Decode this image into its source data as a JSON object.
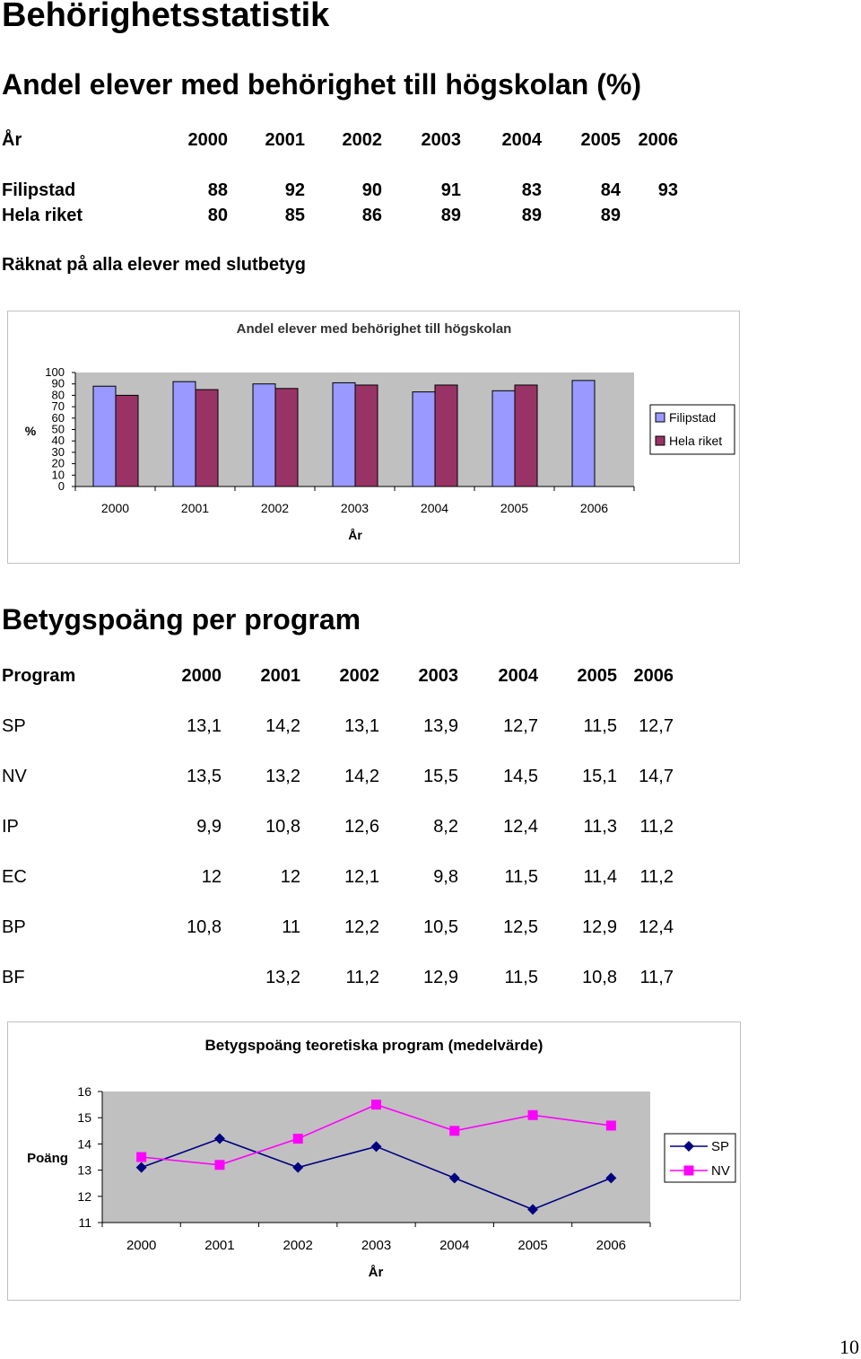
{
  "page_title": "Behörighetsstatistik",
  "section1": {
    "title": "Andel elever med behörighet till högskolan (%)",
    "header": {
      "label": "År",
      "years": [
        "2000",
        "2001",
        "2002",
        "2003",
        "2004",
        "2005",
        "2006"
      ]
    },
    "rows": [
      {
        "label": "Filipstad",
        "values": [
          "88",
          "92",
          "90",
          "91",
          "83",
          "84",
          "93"
        ]
      },
      {
        "label": "Hela riket",
        "values": [
          "80",
          "85",
          "86",
          "89",
          "89",
          "89",
          ""
        ]
      }
    ],
    "note": "Räknat på alla elever med slutbetyg"
  },
  "chart1": {
    "chart_data": {
      "type": "bar",
      "title": "Andel elever med behörighet till högskolan",
      "xlabel": "År",
      "ylabel": "%",
      "categories": [
        "2000",
        "2001",
        "2002",
        "2003",
        "2004",
        "2005",
        "2006"
      ],
      "series": [
        {
          "name": "Filipstad",
          "values": [
            88,
            92,
            90,
            91,
            83,
            84,
            93
          ]
        },
        {
          "name": "Hela riket",
          "values": [
            80,
            85,
            86,
            89,
            89,
            89,
            null
          ]
        }
      ],
      "ylim": [
        0,
        100
      ],
      "yticks": [
        "0",
        "10",
        "20",
        "30",
        "40",
        "50",
        "60",
        "70",
        "80",
        "90",
        "100"
      ],
      "legend": "right",
      "grid": false,
      "colors": {
        "Filipstad": "#9999ff",
        "Hela riket": "#993366",
        "plot_bg": "#c0c0c0"
      }
    }
  },
  "section2": {
    "title": "Betygspoäng per program",
    "header": {
      "label": "Program",
      "years": [
        "2000",
        "2001",
        "2002",
        "2003",
        "2004",
        "2005",
        "2006"
      ]
    },
    "rows": [
      {
        "label": "SP",
        "values": [
          "13,1",
          "14,2",
          "13,1",
          "13,9",
          "12,7",
          "11,5",
          "12,7"
        ]
      },
      {
        "label": "NV",
        "values": [
          "13,5",
          "13,2",
          "14,2",
          "15,5",
          "14,5",
          "15,1",
          "14,7"
        ]
      },
      {
        "label": "IP",
        "values": [
          "9,9",
          "10,8",
          "12,6",
          "8,2",
          "12,4",
          "11,3",
          "11,2"
        ]
      },
      {
        "label": "EC",
        "values": [
          "12",
          "12",
          "12,1",
          "9,8",
          "11,5",
          "11,4",
          "11,2"
        ]
      },
      {
        "label": "BP",
        "values": [
          "10,8",
          "11",
          "12,2",
          "10,5",
          "12,5",
          "12,9",
          "12,4"
        ]
      },
      {
        "label": "BF",
        "values": [
          "",
          "13,2",
          "11,2",
          "12,9",
          "11,5",
          "10,8",
          "11,7"
        ]
      }
    ]
  },
  "chart2": {
    "chart_data": {
      "type": "line",
      "title": "Betygspoäng teoretiska program (medelvärde)",
      "xlabel": "År",
      "ylabel": "Poäng",
      "categories": [
        "2000",
        "2001",
        "2002",
        "2003",
        "2004",
        "2005",
        "2006"
      ],
      "series": [
        {
          "name": "SP",
          "values": [
            13.1,
            14.2,
            13.1,
            13.9,
            12.7,
            11.5,
            12.7
          ]
        },
        {
          "name": "NV",
          "values": [
            13.5,
            13.2,
            14.2,
            15.5,
            14.5,
            15.1,
            14.7
          ]
        }
      ],
      "ylim": [
        11,
        16
      ],
      "yticks": [
        "11",
        "12",
        "13",
        "14",
        "15",
        "16"
      ],
      "legend": "right",
      "grid": false,
      "colors": {
        "SP": "#000080",
        "NV": "#ff00ff",
        "plot_bg": "#c0c0c0"
      }
    }
  },
  "page_number": "10"
}
